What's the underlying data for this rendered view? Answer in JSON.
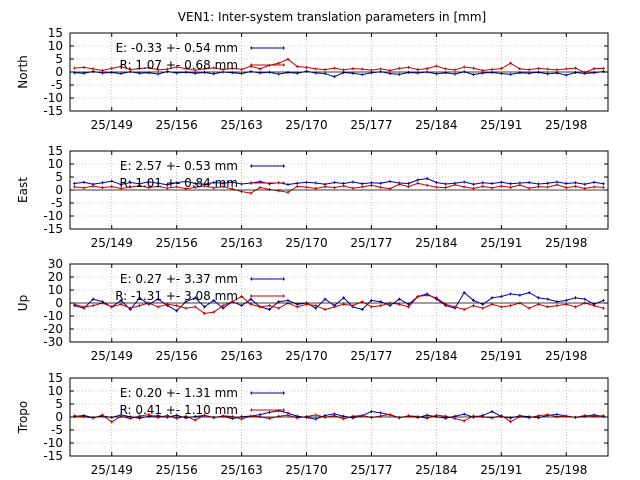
{
  "figure": {
    "title": "VEN1: Inter-system translation parameters in [mm]"
  },
  "chart_data": [
    {
      "type": "line",
      "ylabel": "North",
      "ylim": [
        -15,
        15
      ],
      "yticks": [
        15,
        10,
        5,
        0,
        -5,
        -10,
        -15
      ],
      "xlim": [
        144.5,
        202.5
      ],
      "xticks": [
        149,
        156,
        163,
        170,
        177,
        184,
        191,
        198
      ],
      "xtick_labels": [
        "25/149",
        "25/156",
        "25/163",
        "25/170",
        "25/177",
        "25/184",
        "25/191",
        "25/198"
      ],
      "grid": true,
      "legend_placement": "top-left",
      "series": [
        {
          "name": "E:  -0.33 +- 0.54 mm",
          "color": "#0000a0",
          "x": [
            145,
            146,
            147,
            148,
            149,
            150,
            151,
            152,
            153,
            154,
            155,
            156,
            157,
            158,
            159,
            160,
            161,
            162,
            163,
            164,
            165,
            166,
            167,
            168,
            169,
            170,
            171,
            172,
            173,
            174,
            175,
            176,
            177,
            178,
            179,
            180,
            181,
            182,
            183,
            184,
            185,
            186,
            187,
            188,
            189,
            190,
            191,
            192,
            193,
            194,
            195,
            196,
            197,
            198,
            199,
            200,
            201,
            202
          ],
          "values": [
            -0.3,
            -0.5,
            0.2,
            -0.4,
            -0.2,
            -0.6,
            0.1,
            -0.5,
            -0.3,
            -0.8,
            0.2,
            -0.4,
            -0.1,
            -0.5,
            -0.2,
            -0.7,
            0.0,
            -0.3,
            -0.6,
            0.2,
            -0.4,
            -0.1,
            -0.8,
            -0.2,
            -0.5,
            0.3,
            -0.4,
            -0.6,
            -1.8,
            -0.2,
            -0.5,
            -1.0,
            -0.3,
            0.1,
            -0.6,
            -0.9,
            -0.2,
            -0.4,
            0.0,
            -0.7,
            -0.3,
            -0.8,
            0.1,
            -1.0,
            -0.4,
            -0.2,
            -0.6,
            -0.9,
            -0.3,
            -0.5,
            -0.1,
            -0.7,
            -0.4,
            -1.2,
            -0.2,
            -0.6,
            -0.3,
            0.2
          ]
        },
        {
          "name": "R:  1.07 +- 0.68 mm",
          "color": "#c80000",
          "x": [
            145,
            146,
            147,
            148,
            149,
            150,
            151,
            152,
            153,
            154,
            155,
            156,
            157,
            158,
            159,
            160,
            161,
            162,
            163,
            164,
            165,
            166,
            167,
            168,
            169,
            170,
            171,
            172,
            173,
            174,
            175,
            176,
            177,
            178,
            179,
            180,
            181,
            182,
            183,
            184,
            185,
            186,
            187,
            188,
            189,
            190,
            191,
            192,
            193,
            194,
            195,
            196,
            197,
            198,
            199,
            200,
            201,
            202
          ],
          "values": [
            1.5,
            1.8,
            1.2,
            0.6,
            1.4,
            2.1,
            0.9,
            1.3,
            1.7,
            0.8,
            1.1,
            1.9,
            1.3,
            0.7,
            1.2,
            1.6,
            0.9,
            1.4,
            1.0,
            2.2,
            1.2,
            2.6,
            3.4,
            4.9,
            2.1,
            1.8,
            1.2,
            0.9,
            1.5,
            0.8,
            1.3,
            1.1,
            0.7,
            1.2,
            0.6,
            1.4,
            1.8,
            0.9,
            1.3,
            2.3,
            1.2,
            0.8,
            1.9,
            1.5,
            0.6,
            1.0,
            1.3,
            3.4,
            1.2,
            0.9,
            1.4,
            1.1,
            0.8,
            1.2,
            1.5,
            -0.2,
            1.3,
            1.4
          ]
        }
      ]
    },
    {
      "type": "line",
      "ylabel": "East",
      "ylim": [
        -15,
        15
      ],
      "yticks": [
        15,
        10,
        5,
        0,
        -5,
        -10,
        -15
      ],
      "xlim": [
        144.5,
        202.5
      ],
      "xticks": [
        149,
        156,
        163,
        170,
        177,
        184,
        191,
        198
      ],
      "xtick_labels": [
        "25/149",
        "25/156",
        "25/163",
        "25/170",
        "25/177",
        "25/184",
        "25/191",
        "25/198"
      ],
      "grid": true,
      "legend_placement": "top-left",
      "series": [
        {
          "name": "E:   2.57 +- 0.53 mm",
          "color": "#0000a0",
          "x": [
            145,
            146,
            147,
            148,
            149,
            150,
            151,
            152,
            153,
            154,
            155,
            156,
            157,
            158,
            159,
            160,
            161,
            162,
            163,
            164,
            165,
            166,
            167,
            168,
            169,
            170,
            171,
            172,
            173,
            174,
            175,
            176,
            177,
            178,
            179,
            180,
            181,
            182,
            183,
            184,
            185,
            186,
            187,
            188,
            189,
            190,
            191,
            192,
            193,
            194,
            195,
            196,
            197,
            198,
            199,
            200,
            201,
            202
          ],
          "values": [
            2.5,
            3.0,
            2.2,
            2.8,
            3.4,
            2.1,
            2.9,
            2.4,
            3.1,
            2.6,
            2.0,
            2.8,
            3.3,
            2.5,
            2.2,
            2.9,
            2.6,
            3.0,
            2.3,
            2.7,
            3.2,
            2.4,
            2.8,
            2.1,
            2.6,
            3.0,
            2.7,
            2.2,
            2.9,
            2.5,
            3.1,
            2.4,
            2.8,
            2.6,
            3.3,
            2.7,
            2.5,
            3.9,
            4.4,
            2.9,
            2.3,
            2.6,
            3.1,
            2.2,
            2.8,
            2.5,
            3.0,
            2.4,
            2.7,
            2.9,
            2.3,
            2.6,
            3.1,
            2.5,
            2.8,
            2.2,
            3.0,
            2.4
          ]
        },
        {
          "name": "R:   1.01 +- 0.84 mm",
          "color": "#c80000",
          "x": [
            145,
            146,
            147,
            148,
            149,
            150,
            151,
            152,
            153,
            154,
            155,
            156,
            157,
            158,
            159,
            160,
            161,
            162,
            163,
            164,
            165,
            166,
            167,
            168,
            169,
            170,
            171,
            172,
            173,
            174,
            175,
            176,
            177,
            178,
            179,
            180,
            181,
            182,
            183,
            184,
            185,
            186,
            187,
            188,
            189,
            190,
            191,
            192,
            193,
            194,
            195,
            196,
            197,
            198,
            199,
            200,
            201,
            202
          ],
          "values": [
            1.2,
            0.8,
            1.5,
            0.9,
            1.3,
            0.6,
            1.1,
            1.7,
            0.9,
            1.4,
            0.7,
            1.2,
            0.5,
            1.0,
            1.6,
            0.8,
            1.3,
            0.4,
            -0.6,
            -1.2,
            1.0,
            0.2,
            -0.3,
            -0.9,
            1.4,
            1.1,
            0.6,
            1.3,
            0.9,
            1.6,
            0.7,
            1.2,
            1.8,
            1.0,
            0.5,
            2.2,
            1.3,
            2.6,
            1.8,
            1.1,
            0.9,
            2.0,
            1.2,
            0.6,
            1.4,
            0.8,
            1.5,
            1.0,
            1.9,
            0.7,
            1.3,
            1.1,
            2.0,
            0.9,
            1.4,
            0.6,
            1.2,
            1.0
          ]
        }
      ]
    },
    {
      "type": "line",
      "ylabel": "Up",
      "ylim": [
        -30,
        30
      ],
      "yticks": [
        30,
        20,
        10,
        0,
        -10,
        -20,
        -30
      ],
      "xlim": [
        144.5,
        202.5
      ],
      "xticks": [
        149,
        156,
        163,
        170,
        177,
        184,
        191,
        198
      ],
      "xtick_labels": [
        "25/149",
        "25/156",
        "25/163",
        "25/170",
        "25/177",
        "25/184",
        "25/191",
        "25/198"
      ],
      "grid": true,
      "legend_placement": "top-left",
      "series": [
        {
          "name": "E:   0.27 +- 3.37 mm",
          "color": "#0000a0",
          "x": [
            145,
            146,
            147,
            148,
            149,
            150,
            151,
            152,
            153,
            154,
            155,
            156,
            157,
            158,
            159,
            160,
            161,
            162,
            163,
            164,
            165,
            166,
            167,
            168,
            169,
            170,
            171,
            172,
            173,
            174,
            175,
            176,
            177,
            178,
            179,
            180,
            181,
            182,
            183,
            184,
            185,
            186,
            187,
            188,
            189,
            190,
            191,
            192,
            193,
            194,
            195,
            196,
            197,
            198,
            199,
            200,
            201,
            202
          ],
          "values": [
            -2,
            -4,
            3,
            1,
            -3,
            2,
            -5,
            4,
            -1,
            3,
            -2,
            -6,
            1,
            4,
            -3,
            2,
            -4,
            1,
            -2,
            3,
            -3,
            -5,
            1,
            2,
            -1,
            0,
            -4,
            3,
            -2,
            4,
            -3,
            -5,
            2,
            1,
            -2,
            3,
            -1,
            5,
            7,
            3,
            -2,
            -4,
            8,
            2,
            -1,
            4,
            5,
            7,
            6,
            8,
            4,
            3,
            1,
            2,
            4,
            3,
            -1,
            2
          ]
        },
        {
          "name": "R:  -1.31 +- 3.08 mm",
          "color": "#c80000",
          "x": [
            145,
            146,
            147,
            148,
            149,
            150,
            151,
            152,
            153,
            154,
            155,
            156,
            157,
            158,
            159,
            160,
            161,
            162,
            163,
            164,
            165,
            166,
            167,
            168,
            169,
            170,
            171,
            172,
            173,
            174,
            175,
            176,
            177,
            178,
            179,
            180,
            181,
            182,
            183,
            184,
            185,
            186,
            187,
            188,
            189,
            190,
            191,
            192,
            193,
            194,
            195,
            196,
            197,
            198,
            199,
            200,
            201,
            202
          ],
          "values": [
            -1,
            -3,
            -2,
            0,
            -3,
            -1,
            -4,
            -2,
            0,
            -3,
            -1,
            -2,
            -4,
            -3,
            -8,
            -7,
            -2,
            1,
            5,
            -1,
            -3,
            -2,
            -4,
            0,
            -3,
            -1,
            -2,
            -5,
            -3,
            -1,
            -2,
            1,
            -3,
            -2,
            0,
            -1,
            -3,
            5,
            6,
            4,
            -1,
            -3,
            -5,
            -2,
            -4,
            -1,
            -3,
            -2,
            0,
            -4,
            -1,
            -3,
            -2,
            -1,
            -3,
            0,
            -2,
            -4
          ]
        }
      ]
    },
    {
      "type": "line",
      "ylabel": "Tropo",
      "ylim": [
        -15,
        15
      ],
      "yticks": [
        15,
        10,
        5,
        0,
        -5,
        -10,
        -15
      ],
      "xlim": [
        144.5,
        202.5
      ],
      "xticks": [
        149,
        156,
        163,
        170,
        177,
        184,
        191,
        198
      ],
      "xtick_labels": [
        "25/149",
        "25/156",
        "25/163",
        "25/170",
        "25/177",
        "25/184",
        "25/191",
        "25/198"
      ],
      "grid": true,
      "legend_placement": "top-left",
      "series": [
        {
          "name": "E:   0.20 +- 1.31 mm",
          "color": "#0000a0",
          "x": [
            145,
            146,
            147,
            148,
            149,
            150,
            151,
            152,
            153,
            154,
            155,
            156,
            157,
            158,
            159,
            160,
            161,
            162,
            163,
            164,
            165,
            166,
            167,
            168,
            169,
            170,
            171,
            172,
            173,
            174,
            175,
            176,
            177,
            178,
            179,
            180,
            181,
            182,
            183,
            184,
            185,
            186,
            187,
            188,
            189,
            190,
            191,
            192,
            193,
            194,
            195,
            196,
            197,
            198,
            199,
            200,
            201,
            202
          ],
          "values": [
            0.2,
            0.6,
            -0.3,
            0.4,
            -0.2,
            0.8,
            0.1,
            -0.5,
            0.3,
            0.5,
            -0.1,
            0.7,
            -0.4,
            0.2,
            0.6,
            -0.2,
            0.3,
            -0.6,
            0.1,
            0.4,
            0.9,
            1.8,
            2.4,
            1.5,
            0.3,
            -0.2,
            -0.8,
            0.6,
            1.2,
            0.3,
            -0.4,
            0.5,
            2.1,
            1.6,
            0.8,
            -0.3,
            0.4,
            -0.2,
            0.7,
            0.1,
            -0.5,
            0.3,
            1.1,
            -0.1,
            0.6,
            2.1,
            0.2,
            -0.4,
            0.5,
            0.1,
            -0.3,
            0.6,
            1.0,
            0.4,
            -0.2,
            0.3,
            0.8,
            0.2
          ]
        },
        {
          "name": "R:   0.41 +- 1.10 mm",
          "color": "#c80000",
          "x": [
            145,
            146,
            147,
            148,
            149,
            150,
            151,
            152,
            153,
            154,
            155,
            156,
            157,
            158,
            159,
            160,
            161,
            162,
            163,
            164,
            165,
            166,
            167,
            168,
            169,
            170,
            171,
            172,
            173,
            174,
            175,
            176,
            177,
            178,
            179,
            180,
            181,
            182,
            183,
            184,
            185,
            186,
            187,
            188,
            189,
            190,
            191,
            192,
            193,
            194,
            195,
            196,
            197,
            198,
            199,
            200,
            201,
            202
          ],
          "values": [
            0.5,
            0.1,
            -0.4,
            0.8,
            -1.9,
            0.3,
            -0.6,
            0.4,
            0.9,
            -0.2,
            0.6,
            -0.5,
            0.3,
            -1.2,
            0.7,
            -0.3,
            0.5,
            0.2,
            -0.8,
            0.4,
            0.1,
            -0.6,
            0.3,
            0.7,
            -0.4,
            0.2,
            0.8,
            -0.1,
            0.5,
            -0.7,
            0.3,
            0.6,
            -0.2,
            0.4,
            1.0,
            -0.3,
            0.5,
            0.2,
            -0.5,
            0.7,
            0.3,
            -0.6,
            -1.5,
            0.4,
            0.1,
            -0.4,
            0.6,
            -1.8,
            0.2,
            -0.3,
            0.5,
            0.9,
            0.1,
            0.4,
            -0.2,
            0.6,
            0.3,
            0.5
          ]
        }
      ]
    }
  ]
}
